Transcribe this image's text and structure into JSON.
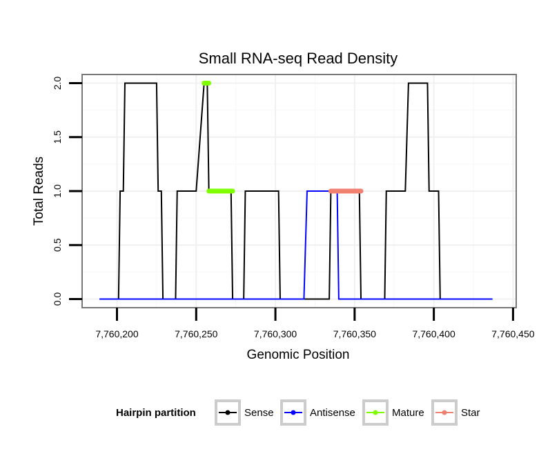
{
  "chart_data": {
    "type": "line",
    "title": "Small RNA-seq Read Density",
    "xlabel": "Genomic Position",
    "ylabel": "Total Reads",
    "xlim": [
      7760178,
      7760452
    ],
    "ylim": [
      -0.08,
      2.08
    ],
    "x_ticks": [
      7760200,
      7760250,
      7760300,
      7760350,
      7760400,
      7760450
    ],
    "x_tick_labels": [
      "7,760,200",
      "7,760,250",
      "7,760,300",
      "7,760,350",
      "7,760,400",
      "7,760,450"
    ],
    "y_ticks": [
      0,
      0.5,
      1,
      1.5,
      2
    ],
    "y_tick_labels": [
      "0.0",
      "0.5",
      "1.0",
      "1.5",
      "2.0"
    ],
    "grid": true,
    "legend": {
      "title": "Hairpin partition",
      "position": "bottom",
      "entries": [
        "Sense",
        "Antisense",
        "Mature",
        "Star"
      ]
    },
    "series": [
      {
        "name": "Sense",
        "color": "#000000",
        "points": [
          [
            7760189,
            0
          ],
          [
            7760201,
            0
          ],
          [
            7760202,
            1
          ],
          [
            7760204,
            1
          ],
          [
            7760205,
            2
          ],
          [
            7760225,
            2
          ],
          [
            7760226,
            1
          ],
          [
            7760228,
            1
          ],
          [
            7760229,
            0
          ],
          [
            7760237,
            0
          ],
          [
            7760238,
            1
          ],
          [
            7760250,
            1
          ],
          [
            7760255,
            2
          ],
          [
            7760257,
            2
          ],
          [
            7760258,
            1
          ],
          [
            7760272,
            1
          ],
          [
            7760273,
            0
          ],
          [
            7760280,
            0
          ],
          [
            7760281,
            1
          ],
          [
            7760302,
            1
          ],
          [
            7760303,
            0
          ],
          [
            7760334,
            0
          ],
          [
            7760335,
            1
          ],
          [
            7760353,
            1
          ],
          [
            7760354,
            0
          ],
          [
            7760369,
            0
          ],
          [
            7760370,
            1
          ],
          [
            7760382,
            1
          ],
          [
            7760384,
            2
          ],
          [
            7760396,
            2
          ],
          [
            7760397,
            1
          ],
          [
            7760403,
            1
          ],
          [
            7760404,
            0
          ],
          [
            7760437,
            0
          ]
        ]
      },
      {
        "name": "Antisense",
        "color": "#0000ff",
        "points": [
          [
            7760189,
            0
          ],
          [
            7760318,
            0
          ],
          [
            7760320,
            1
          ],
          [
            7760339,
            1
          ],
          [
            7760340,
            0
          ],
          [
            7760437,
            0
          ]
        ]
      },
      {
        "name": "Mature",
        "color": "#80ff00",
        "points": [
          [
            7760255,
            2
          ],
          [
            7760258,
            2
          ]
        ],
        "points2": [
          [
            7760258,
            1
          ],
          [
            7760273,
            1
          ]
        ]
      },
      {
        "name": "Star",
        "color": "#f08070",
        "points": [
          [
            7760335,
            1
          ],
          [
            7760354,
            1
          ]
        ]
      }
    ]
  }
}
